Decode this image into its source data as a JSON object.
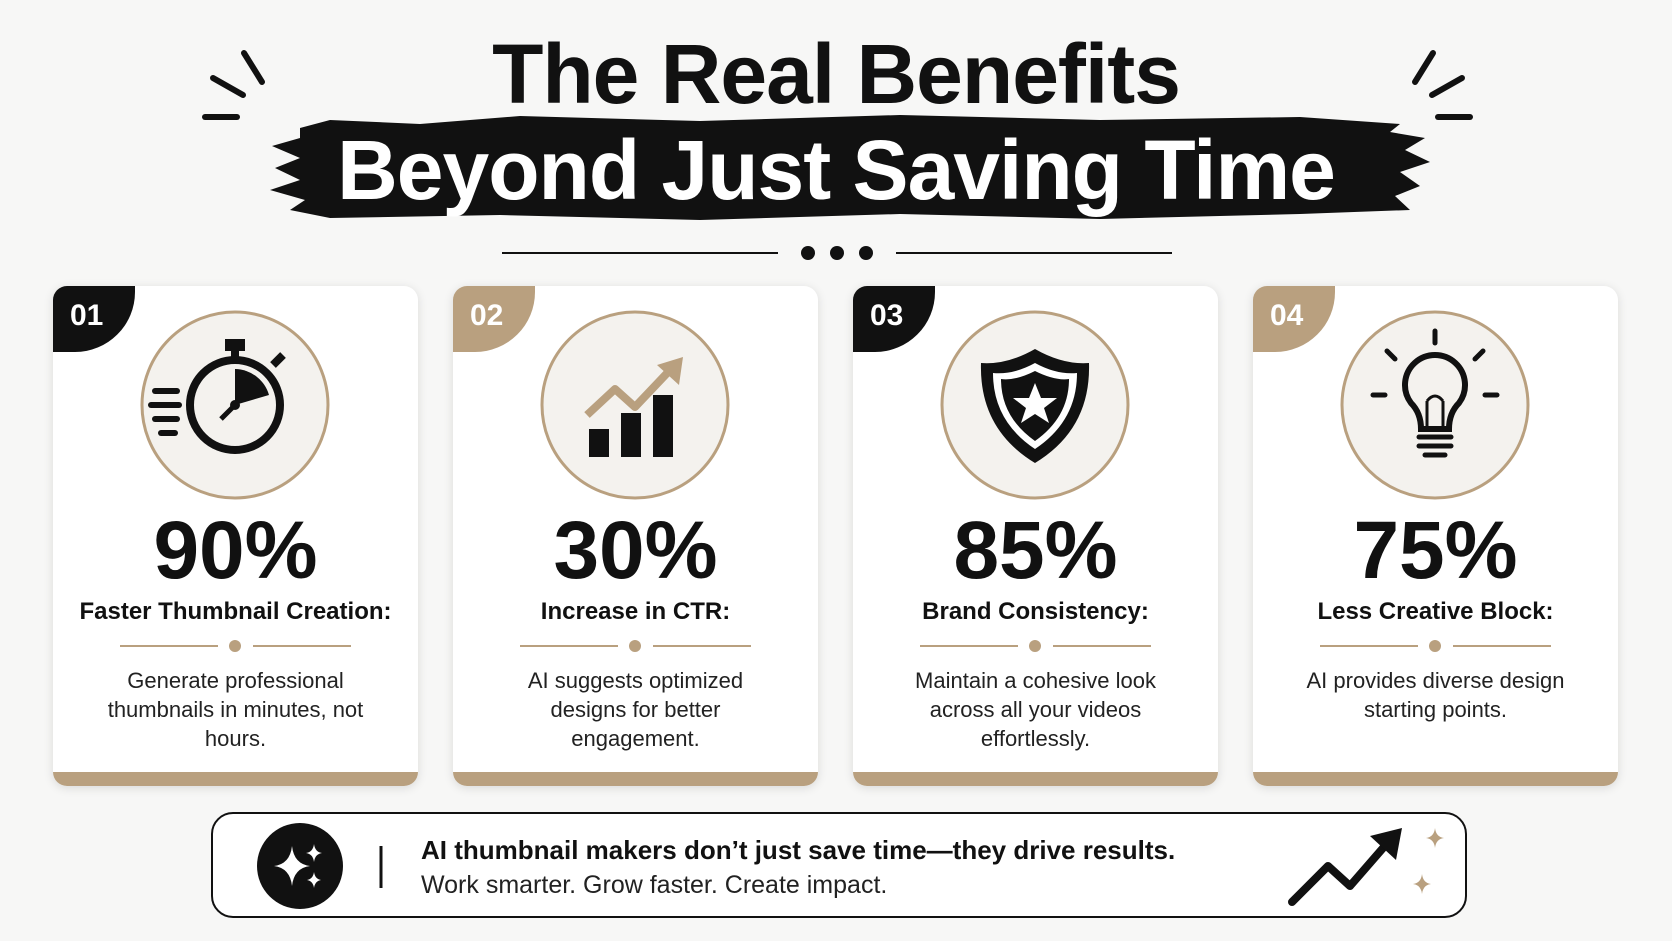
{
  "header": {
    "title_line1": "The Real Benefits",
    "title_line2": "Beyond Just Saving Time"
  },
  "cards": [
    {
      "number": "01",
      "stat": "90%",
      "heading": "Faster Thumbnail Creation:",
      "description": "Generate professional thumbnails in minutes, not hours."
    },
    {
      "number": "02",
      "stat": "30%",
      "heading": "Increase in CTR:",
      "description": "AI suggests optimized designs for better engagement."
    },
    {
      "number": "03",
      "stat": "85%",
      "heading": "Brand Consistency:",
      "description": "Maintain a cohesive look across all your videos effortlessly."
    },
    {
      "number": "04",
      "stat": "75%",
      "heading": "Less Creative Block:",
      "description": "AI provides diverse design starting points."
    }
  ],
  "footer": {
    "headline": "AI thumbnail makers don’t just save time—they drive results.",
    "tagline": "Work smarter. Grow faster. Create impact."
  }
}
